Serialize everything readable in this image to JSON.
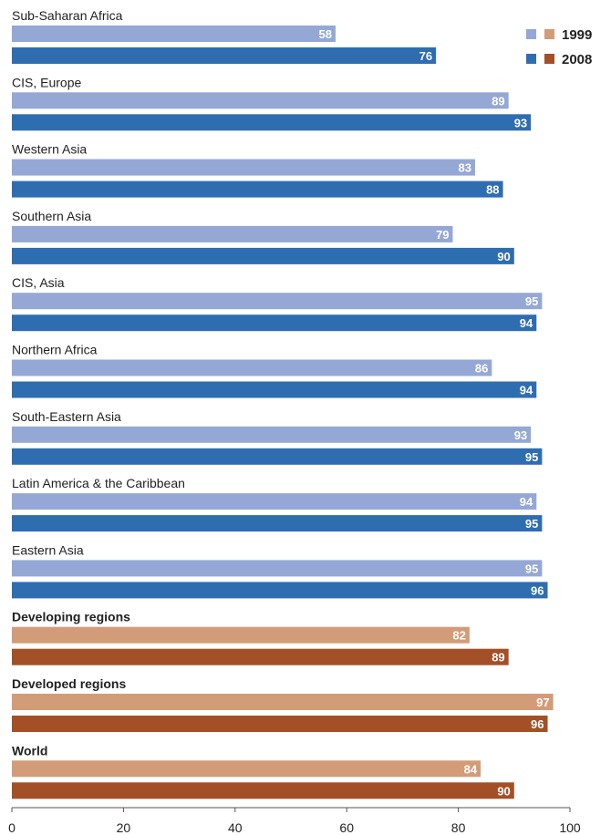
{
  "chart_data": {
    "type": "bar",
    "orientation": "horizontal",
    "categories": [
      "Sub-Saharan Africa",
      "CIS, Europe",
      "Western Asia",
      "Southern Asia",
      "CIS, Asia",
      "Northern Africa",
      "South-Eastern Asia",
      "Latin America & the Caribbean",
      "Eastern Asia",
      "Developing regions",
      "Developed regions",
      "World"
    ],
    "category_groups": [
      "region",
      "region",
      "region",
      "region",
      "region",
      "region",
      "region",
      "region",
      "region",
      "aggregate",
      "aggregate",
      "aggregate"
    ],
    "series": [
      {
        "name": "1999",
        "values": [
          58,
          89,
          83,
          79,
          95,
          86,
          93,
          94,
          95,
          82,
          97,
          84
        ]
      },
      {
        "name": "2008",
        "values": [
          76,
          93,
          88,
          90,
          94,
          94,
          95,
          95,
          96,
          89,
          96,
          90
        ]
      }
    ],
    "xlim": [
      0,
      100
    ],
    "xticks": [
      0,
      20,
      40,
      60,
      80,
      100
    ],
    "grid": false,
    "legend_position": "top-right",
    "colors": {
      "region": {
        "1999": "#95a8d5",
        "2008": "#2f6db1"
      },
      "aggregate": {
        "1999": "#d39c78",
        "2008": "#a34f27"
      },
      "axis": "#555555"
    }
  }
}
